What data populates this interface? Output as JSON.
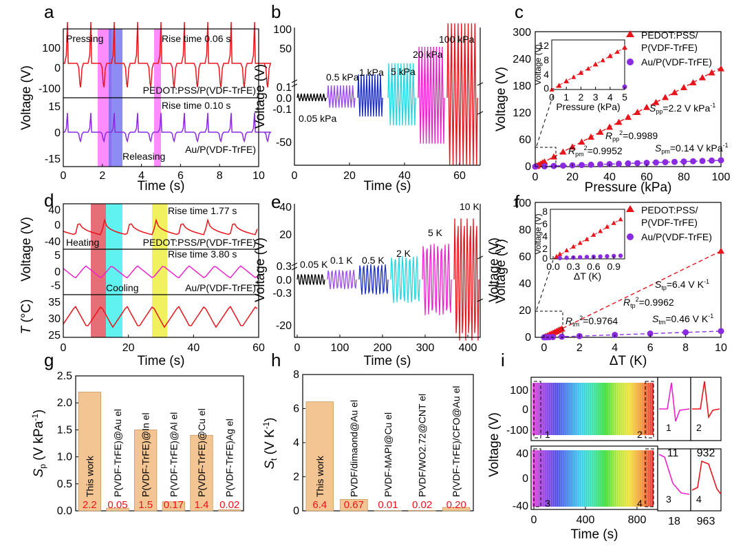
{
  "panel_letters": [
    "a",
    "b",
    "c",
    "d",
    "e",
    "f",
    "g",
    "h",
    "i"
  ],
  "chart_data": [
    {
      "panel": "a",
      "type": "line",
      "xlabel": "Time (s)",
      "ylabel": "Voltage (V)",
      "xlim": [
        0,
        10
      ],
      "x_ticks": [
        "0",
        "2",
        "4",
        "6",
        "8",
        "10"
      ],
      "series": [
        {
          "name": "PEDOT:PSS/P(VDF-TrFE)",
          "color": "#e8141c",
          "y_ticks": [
            "100",
            "0",
            "-100"
          ],
          "ylim": [
            -150,
            150
          ],
          "period_s": 1.2,
          "peak": 110,
          "trough": -100
        },
        {
          "name": "Au/P(VDF-TrFE)",
          "color": "#8a2be2",
          "y_ticks": [
            "15",
            "0",
            "-15"
          ],
          "ylim": [
            -20,
            20
          ],
          "period_s": 1.2,
          "peak": 12,
          "trough": -12
        }
      ],
      "annotations": [
        "Pressing",
        "Releasing",
        "Rise time 0.06 s",
        "Rise time 0.10 s"
      ],
      "highlight_colors": [
        "#ff66ff",
        "#6666ee"
      ]
    },
    {
      "panel": "b",
      "type": "line",
      "xlabel": "Time (s)",
      "ylabel": "Voltage (V)",
      "xlim": [
        0,
        65
      ],
      "x_ticks": [
        "0",
        "20",
        "40",
        "60"
      ],
      "y_ticks_lower": [
        "0.1",
        "0.0",
        "-0.1"
      ],
      "y_ticks_upper": [
        "100",
        "50",
        "0",
        "-50"
      ],
      "segments": [
        {
          "label": "0.05 kPa",
          "color": "#000000",
          "amplitude_v": 0.05
        },
        {
          "label": "0.5 kPa",
          "color": "#9a4de8",
          "amplitude_v": 0.5
        },
        {
          "label": "1 kPa",
          "color": "#1c2fbf",
          "amplitude_v": 1
        },
        {
          "label": "5 kPa",
          "color": "#22d8e0",
          "amplitude_v": 5
        },
        {
          "label": "20 kPa",
          "color": "#ee22cc",
          "amplitude_v": 20
        },
        {
          "label": "100 kPa",
          "color": "#e8141c",
          "amplitude_v": 110
        }
      ]
    },
    {
      "panel": "c",
      "type": "scatter",
      "xlabel": "Pressure (kPa)",
      "ylabel": "Voltage (V)",
      "xlim": [
        0,
        100
      ],
      "ylim": [
        0,
        300
      ],
      "x_ticks": [
        "0",
        "20",
        "40",
        "60",
        "80",
        "100"
      ],
      "y_ticks": [
        "0",
        "60",
        "120",
        "180",
        "240",
        "300"
      ],
      "series": [
        {
          "name": "PEDOT:PSS/P(VDF-TrFE)",
          "color": "#e8141c",
          "marker": "triangle",
          "x": [
            0.5,
            1,
            2,
            3,
            4,
            5,
            10,
            15,
            20,
            25,
            30,
            35,
            40,
            45,
            50,
            55,
            60,
            65,
            70,
            75,
            80,
            85,
            90,
            95,
            100
          ],
          "y": [
            1,
            2.2,
            4.4,
            6.6,
            8.8,
            11,
            22,
            33,
            44,
            55,
            66,
            77,
            88,
            99,
            110,
            121,
            132,
            143,
            154,
            165,
            176,
            187,
            198,
            209,
            218
          ]
        },
        {
          "name": "Au/P(VDF-TrFE)",
          "color": "#8a2be2",
          "marker": "circle",
          "x": [
            0,
            5,
            10,
            15,
            20,
            25,
            30,
            35,
            40,
            45,
            50,
            55,
            60,
            65,
            70,
            75,
            80,
            85,
            90,
            95,
            100
          ],
          "y": [
            0,
            0.7,
            1.4,
            2.1,
            2.8,
            3.5,
            4.2,
            4.9,
            5.6,
            6.3,
            7,
            7.7,
            8.4,
            9.1,
            9.8,
            10.5,
            11.2,
            11.9,
            12.6,
            13.3,
            14
          ]
        }
      ],
      "inset": {
        "xlabel": "Pressure (kPa)",
        "ylabel": "Voltage (V)",
        "xlim": [
          0,
          5
        ],
        "ylim": [
          0,
          13
        ],
        "x_ticks": [
          "0",
          "1",
          "2",
          "3",
          "4",
          "5"
        ],
        "y_ticks": [
          "0",
          "4",
          "8",
          "12"
        ]
      },
      "annotations": {
        "s_pp": "=2.2 V kPa",
        "r_pp": "=0.9989",
        "r_pm": "=0.9952",
        "s_pm": "=0.14 V kPa"
      },
      "legend": [
        "PEDOT:PSS/",
        "P(VDF-TrFE)",
        "Au/P(VDF-TrFE)"
      ]
    },
    {
      "panel": "d",
      "type": "line",
      "xlabel": "Time (s)",
      "xlim": [
        0,
        60
      ],
      "x_ticks": [
        "0",
        "20",
        "40",
        "60"
      ],
      "series": [
        {
          "name": "PEDOT:PSS/P(VDF-TrFE)",
          "color": "#e8141c",
          "y_ticks": [
            "40",
            "0",
            "-40"
          ]
        },
        {
          "name": "Au/P(VDF-TrFE)",
          "color": "#ee22cc",
          "y_ticks": [
            "5",
            "0",
            "-5"
          ]
        },
        {
          "name": "T",
          "color": "#e8141c",
          "y_ticks": [
            "35",
            "30",
            "25"
          ]
        }
      ],
      "ylabel_voltage": "Voltage (V)",
      "ylabel_temp_sym": "T",
      "ylabel_temp_unit": " (°C)",
      "annotations": [
        "Rise time 1.77 s",
        "Rise time 3.80 s",
        "Heating",
        "Cooling"
      ],
      "highlight_colors": [
        "#e0555f",
        "#44eeee",
        "#eeee44"
      ]
    },
    {
      "panel": "e",
      "type": "line",
      "xlabel": "Time (s)",
      "ylabel": "Voltage (V)",
      "xlim": [
        0,
        440
      ],
      "x_ticks": [
        "0",
        "100",
        "200",
        "300",
        "400"
      ],
      "y_ticks_lower": [
        "0.3",
        "0.0",
        "-0.3"
      ],
      "y_ticks_upper": [
        "40",
        "20",
        "0",
        "-20"
      ],
      "segments": [
        {
          "label": "0.05 K",
          "color": "#000000"
        },
        {
          "label": "0.1 K",
          "color": "#9a4de8"
        },
        {
          "label": "0.5 K",
          "color": "#1c2fbf"
        },
        {
          "label": "2 K",
          "color": "#22d8e0"
        },
        {
          "label": "5 K",
          "color": "#ee22cc"
        },
        {
          "label": "10 K",
          "color": "#e8141c"
        }
      ]
    },
    {
      "panel": "f",
      "type": "scatter",
      "xlabel": "ΔT (K)",
      "ylabel": "Voltage (V)",
      "xlim": [
        -0.5,
        10
      ],
      "ylim": [
        0,
        100
      ],
      "x_ticks": [
        "0",
        "2",
        "4",
        "6",
        "8",
        "10"
      ],
      "y_ticks": [
        "0",
        "20",
        "40",
        "60",
        "80",
        "100"
      ],
      "series": [
        {
          "name": "PEDOT:PSS/P(VDF-TrFE)",
          "color": "#e8141c",
          "marker": "triangle",
          "x": [
            0.05,
            0.1,
            0.2,
            0.3,
            0.4,
            0.5,
            0.6,
            0.7,
            0.8,
            0.9,
            1.0,
            10
          ],
          "y": [
            0.4,
            0.8,
            1.4,
            2.0,
            2.6,
            3.2,
            3.9,
            4.5,
            5.2,
            5.8,
            6.4,
            64
          ]
        },
        {
          "name": "Au/P(VDF-TrFE)",
          "color": "#8a2be2",
          "marker": "circle",
          "x": [
            0,
            0.1,
            0.2,
            0.3,
            0.5,
            1,
            2,
            4,
            6,
            8,
            10
          ],
          "y": [
            0,
            0.05,
            0.1,
            0.15,
            0.25,
            0.5,
            0.9,
            1.8,
            2.8,
            3.7,
            4.6
          ]
        }
      ],
      "inset": {
        "xlabel": "ΔT (K)",
        "ylabel": "Voltage (V)",
        "xlim": [
          0,
          1
        ],
        "ylim": [
          0,
          8
        ],
        "x_ticks": [
          "0.0",
          "0.3",
          "0.6",
          "0.9"
        ],
        "y_ticks": [
          "0",
          "1",
          "2",
          "3",
          "4",
          "5",
          "6",
          "7",
          "8"
        ]
      },
      "annotations": {
        "s_tp": "=6.4 V K",
        "r_tp": "=0.9962",
        "r_tm": "=0.9764",
        "s_tm": "=0.46 V K"
      },
      "legend": [
        "PEDOT:PSS/",
        "P(VDF-TrFE)",
        "Au/P(VDF-TrFE)"
      ]
    },
    {
      "panel": "g",
      "type": "bar",
      "ylabel_sym": "S",
      "ylabel_sub": "p",
      "ylabel_unit": " (V kPa",
      "ylim": [
        0,
        2.5
      ],
      "y_ticks": [
        "0.0",
        "0.5",
        "1.0",
        "1.5",
        "2.0",
        "2.5"
      ],
      "categories": [
        "This work",
        "P(VDF-TrFE)@Au el",
        "P(VDF-TrFE)@In el",
        "P(VDF-TrFE)@Al el",
        "P(VDF-TrFE)@Cu el",
        "P(VDF-TrFE)Ag el"
      ],
      "values": [
        2.2,
        0.05,
        1.5,
        0.17,
        1.4,
        0.02
      ],
      "value_labels": [
        "2.2",
        "0.05",
        "1.5",
        "0.17",
        "1.4",
        "0.02"
      ],
      "bar_color": "#f3c593"
    },
    {
      "panel": "h",
      "type": "bar",
      "ylabel_sym": "S",
      "ylabel_sub": "t",
      "ylabel_unit": " (V K",
      "ylim": [
        0,
        8
      ],
      "y_ticks": [
        "0",
        "2",
        "4",
        "6",
        "8"
      ],
      "categories": [
        "This work",
        "PVDF/dimaond@Au el",
        "PVDF-MAPI@Cu el",
        "PVDF/WO2.72@CNT el",
        "P(VDF-TrFE)/CFO@Au el"
      ],
      "values": [
        6.4,
        0.67,
        0.01,
        0.02,
        0.2
      ],
      "value_labels": [
        "6.4",
        "0.67",
        "0.01",
        "0.02",
        "0.20"
      ],
      "bar_color": "#f3c593"
    },
    {
      "panel": "i",
      "type": "line",
      "xlabel": "Time (s)",
      "ylabel": "Voltage (V)",
      "xlim": [
        0,
        960
      ],
      "x_ticks": [
        "0",
        "400",
        "800"
      ],
      "top_y_ticks": [
        "100",
        "0",
        "-100"
      ],
      "bottom_y_ticks": [
        "40",
        "0",
        "-40"
      ],
      "zoom_labels": [
        "1",
        "2",
        "3",
        "4"
      ],
      "zoom_axis_labels": [
        "11",
        "932",
        "18",
        "963"
      ]
    }
  ]
}
